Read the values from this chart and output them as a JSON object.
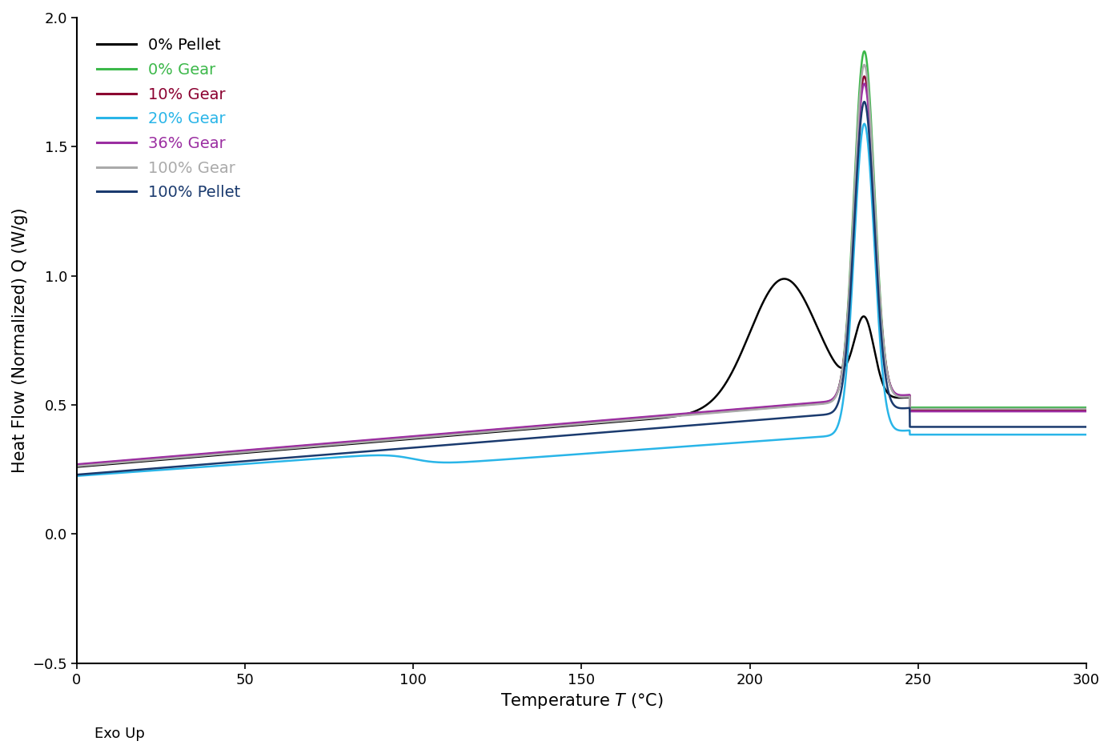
{
  "xlabel": "Temperature $T$ (°C)",
  "ylabel": "Heat Flow (Normalized) Q (W/g)",
  "xlim": [
    0,
    300
  ],
  "ylim": [
    -0.5,
    2.0
  ],
  "xticks": [
    0,
    50,
    100,
    150,
    200,
    250,
    300
  ],
  "yticks": [
    -0.5,
    0.0,
    0.5,
    1.0,
    1.5,
    2.0
  ],
  "exo_label": "Exo Up",
  "series": [
    {
      "label": "0% Pellet",
      "color": "#000000",
      "linewidth": 1.8
    },
    {
      "label": "0% Gear",
      "color": "#3cb84a",
      "linewidth": 1.8
    },
    {
      "label": "10% Gear",
      "color": "#8b0030",
      "linewidth": 1.8
    },
    {
      "label": "20% Gear",
      "color": "#29b5e8",
      "linewidth": 1.8
    },
    {
      "label": "36% Gear",
      "color": "#9b2ea1",
      "linewidth": 1.8
    },
    {
      "label": "100% Gear",
      "color": "#aaaaaa",
      "linewidth": 1.8
    },
    {
      "label": "100% Pellet",
      "color": "#1a3a6e",
      "linewidth": 1.8
    }
  ],
  "legend_fontsize": 14,
  "axis_fontsize": 15,
  "tick_fontsize": 13,
  "background_color": "#ffffff"
}
